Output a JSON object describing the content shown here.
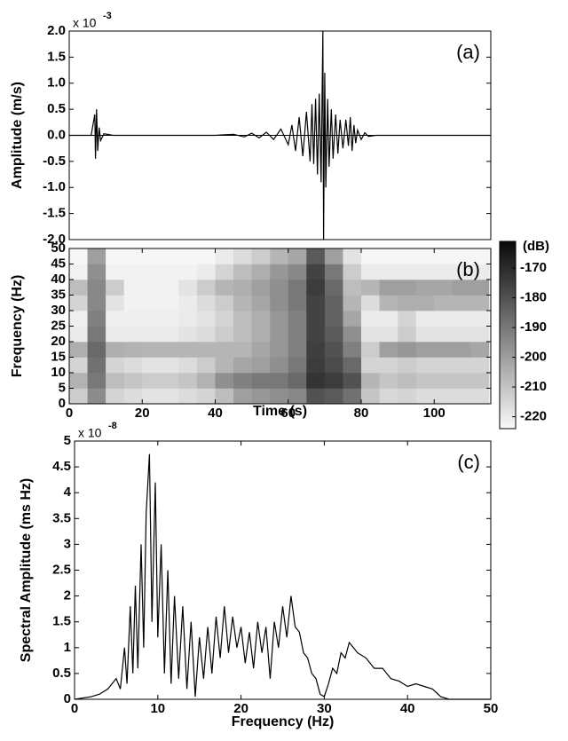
{
  "chart_data": [
    {
      "type": "line",
      "y_label": "Amplitude (m/s)",
      "y_multiplier": "x 10",
      "y_exponent": "-3",
      "annotation": "(a)",
      "color": "#000000",
      "x": [
        0,
        6,
        7,
        7.2,
        7.5,
        7.8,
        8.2,
        8.6,
        9.5,
        12,
        40,
        45,
        48,
        50,
        52,
        54,
        56,
        58,
        60,
        61,
        62,
        63,
        64,
        65,
        66,
        66.5,
        67,
        67.5,
        68,
        68.5,
        69,
        69.5,
        69.7,
        70,
        70.3,
        70.8,
        71.2,
        71.8,
        72.3,
        73,
        73.6,
        74.2,
        75,
        75.8,
        76.5,
        77,
        77.5,
        78,
        78.5,
        79,
        80,
        81,
        82,
        84,
        115.5
      ],
      "values": [
        0,
        0,
        0.4,
        -0.45,
        0.5,
        -0.3,
        0.15,
        -0.1,
        0.03,
        0,
        0,
        0.02,
        -0.03,
        0.04,
        -0.05,
        0.06,
        -0.08,
        0.12,
        -0.18,
        0.2,
        -0.3,
        0.35,
        -0.4,
        0.45,
        -0.5,
        0.6,
        -0.55,
        0.7,
        -0.75,
        0.8,
        -0.9,
        2.0,
        -2.0,
        1.2,
        -1.0,
        0.7,
        -0.6,
        0.5,
        -0.45,
        0.4,
        -0.35,
        0.3,
        -0.25,
        0.3,
        -0.2,
        0.35,
        -0.3,
        0.2,
        -0.15,
        0.1,
        -0.08,
        0.05,
        -0.02,
        0,
        0
      ],
      "xlim": [
        0,
        115.5
      ],
      "ylim": [
        -2,
        2
      ],
      "yticks": [
        {
          "value": 2,
          "label": "2.0"
        },
        1.5,
        {
          "value": 1,
          "label": "1.0"
        },
        0.5,
        {
          "value": 0,
          "label": "0.0"
        },
        -0.5,
        {
          "value": -1,
          "label": "-1.0"
        },
        -1.5,
        {
          "value": -2,
          "label": "-2.0"
        }
      ]
    },
    {
      "type": "heatmap",
      "x_label": "Time (s)",
      "y_label": "Frequency (Hz)",
      "annotation": "(b)",
      "colorbar_label": "(dB)",
      "x": [
        2.5,
        7.5,
        12.5,
        17.5,
        22.5,
        27.5,
        32.5,
        37.5,
        42.5,
        47.5,
        52.5,
        57.5,
        62.5,
        67.5,
        72.5,
        77.5,
        82.5,
        87.5,
        92.5,
        97.5,
        102.5,
        107.5,
        112.5
      ],
      "y": [
        2.5,
        7.5,
        12.5,
        17.5,
        22.5,
        27.5,
        32.5,
        37.5,
        42.5,
        47.5
      ],
      "z": [
        [
          -212,
          -195,
          -214,
          -216,
          -218,
          -218,
          -216,
          -214,
          -208,
          -200,
          -198,
          -196,
          -194,
          -180,
          -182,
          -188,
          -210,
          -215,
          -214,
          -216,
          -216,
          -216,
          -216
        ],
        [
          -205,
          -190,
          -208,
          -210,
          -212,
          -212,
          -210,
          -205,
          -196,
          -192,
          -190,
          -190,
          -186,
          -172,
          -174,
          -180,
          -206,
          -210,
          -208,
          -210,
          -210,
          -210,
          -210
        ],
        [
          -214,
          -188,
          -214,
          -216,
          -218,
          -218,
          -216,
          -212,
          -206,
          -202,
          -200,
          -196,
          -190,
          -174,
          -178,
          -186,
          -214,
          -214,
          -212,
          -214,
          -214,
          -214,
          -214
        ],
        [
          -204,
          -186,
          -204,
          -205,
          -206,
          -206,
          -206,
          -206,
          -206,
          -206,
          -202,
          -198,
          -192,
          -175,
          -180,
          -192,
          -212,
          -200,
          -198,
          -200,
          -200,
          -200,
          -202
        ],
        [
          -220,
          -190,
          -220,
          -220,
          -220,
          -220,
          -218,
          -216,
          -212,
          -208,
          -204,
          -198,
          -192,
          -176,
          -182,
          -196,
          -218,
          -218,
          -212,
          -218,
          -218,
          -218,
          -218
        ],
        [
          -221,
          -192,
          -221,
          -221,
          -221,
          -221,
          -220,
          -218,
          -214,
          -208,
          -204,
          -198,
          -192,
          -176,
          -184,
          -202,
          -220,
          -220,
          -214,
          -220,
          -220,
          -220,
          -220
        ],
        [
          -214,
          -194,
          -218,
          -222,
          -222,
          -222,
          -220,
          -216,
          -212,
          -206,
          -202,
          -196,
          -190,
          -176,
          -184,
          -206,
          -216,
          -206,
          -204,
          -204,
          -206,
          -206,
          -206
        ],
        [
          -208,
          -194,
          -212,
          -222,
          -222,
          -222,
          -218,
          -212,
          -206,
          -204,
          -200,
          -196,
          -190,
          -174,
          -186,
          -208,
          -206,
          -200,
          -200,
          -202,
          -202,
          -200,
          -200
        ],
        [
          -222,
          -196,
          -222,
          -222,
          -222,
          -222,
          -222,
          -220,
          -214,
          -208,
          -204,
          -198,
          -194,
          -176,
          -190,
          -212,
          -220,
          -220,
          -220,
          -220,
          -220,
          -220,
          -220
        ],
        [
          -223,
          -200,
          -223,
          -223,
          -223,
          -223,
          -223,
          -223,
          -220,
          -216,
          -212,
          -206,
          -202,
          -182,
          -200,
          -218,
          -223,
          -223,
          -223,
          -223,
          -223,
          -223,
          -223
        ]
      ],
      "xlim": [
        0,
        115.5
      ],
      "ylim": [
        0,
        50
      ],
      "clim": [
        -224,
        -161
      ],
      "xticks": [
        0,
        20,
        40,
        60,
        80,
        100
      ],
      "yticks": [
        0,
        5,
        10,
        15,
        20,
        25,
        30,
        35,
        40,
        45,
        50
      ],
      "cticks": [
        -170,
        -180,
        -190,
        -200,
        -210,
        -220
      ]
    },
    {
      "type": "line",
      "x_label": "Frequency (Hz)",
      "y_label": "Spectral Amplitude (ms Hz)",
      "y_multiplier": "x 10",
      "y_exponent": "-8",
      "annotation": "(c)",
      "color": "#000000",
      "x": [
        0,
        2,
        3,
        4,
        5,
        5.5,
        6,
        6.3,
        6.7,
        7,
        7.3,
        7.6,
        8,
        8.3,
        8.6,
        9,
        9.3,
        9.7,
        10,
        10.4,
        10.8,
        11.2,
        11.6,
        12,
        12.5,
        13,
        13.5,
        14,
        14.5,
        15,
        15.5,
        16,
        16.5,
        17,
        17.5,
        18,
        18.5,
        19,
        19.5,
        20,
        20.5,
        21,
        21.5,
        22,
        22.5,
        23,
        23.5,
        24,
        24.5,
        25,
        25.5,
        26,
        26.5,
        27,
        27.5,
        28,
        28.5,
        29,
        29.5,
        30,
        30.5,
        31,
        31.5,
        32,
        32.5,
        33,
        33.5,
        34,
        35,
        36,
        37,
        38,
        39,
        40,
        41,
        42,
        43,
        44,
        45,
        50
      ],
      "values": [
        0,
        0.05,
        0.1,
        0.2,
        0.4,
        0.2,
        1.0,
        0.3,
        1.8,
        0.5,
        2.2,
        0.6,
        3.0,
        1.0,
        3.6,
        4.75,
        1.5,
        4.2,
        1.2,
        3.0,
        0.5,
        2.5,
        0.3,
        2.0,
        0.4,
        1.8,
        0.2,
        1.5,
        0.05,
        1.2,
        0.4,
        1.4,
        0.5,
        1.6,
        0.8,
        1.8,
        0.9,
        1.6,
        1.0,
        1.4,
        0.7,
        1.3,
        0.6,
        1.5,
        0.9,
        1.4,
        0.4,
        1.5,
        1.0,
        1.8,
        1.2,
        2.0,
        1.4,
        1.3,
        0.9,
        0.8,
        0.5,
        0.4,
        0.1,
        0.05,
        0.3,
        0.6,
        0.5,
        0.9,
        0.8,
        1.1,
        1.0,
        0.9,
        0.8,
        0.6,
        0.6,
        0.4,
        0.35,
        0.25,
        0.3,
        0.25,
        0.2,
        0.05,
        0,
        0
      ],
      "xlim": [
        0,
        50
      ],
      "ylim": [
        0,
        5
      ],
      "xticks": [
        0,
        10,
        20,
        30,
        40,
        50
      ],
      "yticks": [
        0,
        0.5,
        1,
        1.5,
        2,
        2.5,
        3,
        3.5,
        4,
        4.5,
        5
      ]
    }
  ]
}
